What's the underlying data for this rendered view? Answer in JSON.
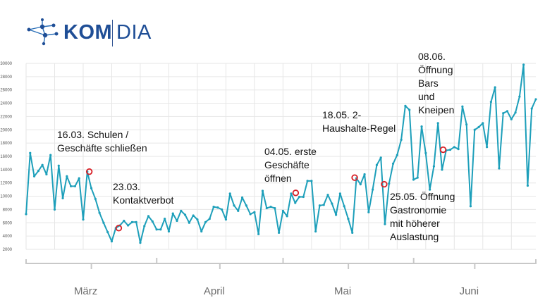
{
  "logo": {
    "part1": "KOM",
    "part2": "DIA",
    "icon": "network-graph-icon"
  },
  "colors": {
    "line": "#1d9fba",
    "marker": "#d81f26",
    "grid": "#e6e6e6",
    "axis": "#c8c8c8",
    "brand": "#1f4e96"
  },
  "annotations": [
    {
      "id": "schools",
      "text": "16.03. Schulen /\nGeschäfte schließen"
    },
    {
      "id": "contact",
      "text": "23.03.\nKontaktverbot"
    },
    {
      "id": "shops",
      "text": "04.05. erste\nGeschäfte\nöffnen"
    },
    {
      "id": "households",
      "text": "18.05. 2-\nHaushalte-Regel"
    },
    {
      "id": "gastro",
      "text": "25.05. Öffnung\nGastronomie\nmit höherer\nAuslastung"
    },
    {
      "id": "bars",
      "text": "08.06.\nÖffnung\nBars\nund\nKneipen"
    }
  ],
  "chart_data": {
    "type": "line",
    "title": "",
    "xlabel": "",
    "ylabel": "",
    "ylim": [
      2000,
      30000
    ],
    "yticks": [
      2000,
      4000,
      6000,
      8000,
      10000,
      12000,
      14000,
      16000,
      18000,
      20000,
      22000,
      24000,
      26000,
      28000,
      30000
    ],
    "ytick_labels": [
      "2000",
      "4000",
      "6000",
      "8000",
      "10000",
      "12000",
      "14000",
      "16000",
      "18000",
      "20000",
      "22000",
      "24000",
      "26000",
      "28000",
      "30000"
    ],
    "month_labels": [
      "März",
      "April",
      "Mai",
      "Juni"
    ],
    "grid": true,
    "x_start": "2020-03-01",
    "x_end": "2020-06-30",
    "series": [
      {
        "values": [
          7300,
          16500,
          13000,
          13800,
          14700,
          13300,
          16200,
          8000,
          14600,
          9700,
          13000,
          11500,
          11500,
          12700,
          6500,
          13700,
          11200,
          9600,
          7500,
          6000,
          4600,
          3200,
          5200,
          5600,
          6300,
          5600,
          6100,
          6100,
          3000,
          5500,
          7000,
          6200,
          5000,
          5000,
          6600,
          4700,
          7400,
          6300,
          7800,
          7200,
          6000,
          7100,
          6500,
          4700,
          6100,
          6600,
          8400,
          8300,
          8000,
          6500,
          10400,
          8600,
          7800,
          9800,
          8600,
          7300,
          7600,
          4300,
          10800,
          8200,
          8400,
          8200,
          4500,
          7800,
          7000,
          10400,
          9000,
          9900,
          9900,
          12300,
          12300,
          4700,
          8600,
          8700,
          10200,
          8900,
          7200,
          10400,
          8500,
          6600,
          4500,
          12700,
          11800,
          13300,
          7600,
          11000,
          14700,
          15800,
          5800,
          11900,
          14900,
          16200,
          18500,
          23600,
          23000,
          12500,
          12800,
          20500,
          16500,
          11000,
          14500,
          21000,
          14000,
          16900,
          17000,
          17400,
          17100,
          23500,
          20800,
          8500,
          20000,
          20400,
          21000,
          17400,
          24200,
          26400,
          14200,
          22500,
          22800,
          21600,
          22600,
          25000,
          29800,
          11600,
          23200,
          24600
        ]
      }
    ],
    "event_markers": [
      {
        "date": "16.03.",
        "x": "2020-03-16",
        "y": 13700
      },
      {
        "date": "23.03.",
        "x": "2020-03-23",
        "y": 5200
      },
      {
        "date": "04.05.",
        "x": "2020-05-04",
        "y": 10500
      },
      {
        "date": "18.05.",
        "x": "2020-05-18",
        "y": 12800
      },
      {
        "date": "25.05.",
        "x": "2020-05-25",
        "y": 11800
      },
      {
        "date": "08.06.",
        "x": "2020-06-08",
        "y": 17000
      }
    ]
  }
}
